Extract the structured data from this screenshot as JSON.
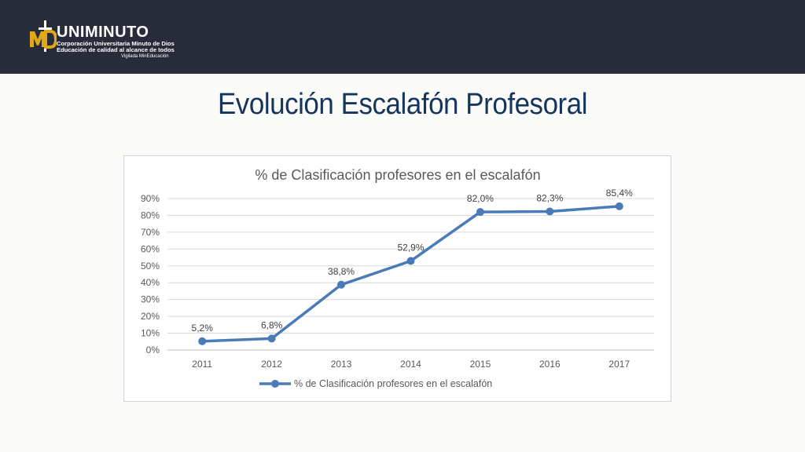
{
  "header": {
    "logo_mark": "MD",
    "logo_name": "UNIMINUTO",
    "logo_line1": "Corporación Universitaria Minuto de Dios",
    "logo_line2": "Educación de calidad al alcance de todos",
    "logo_line3": "Vigilada MinEducación"
  },
  "slide": {
    "title": "Evolución Escalafón Profesoral"
  },
  "colors": {
    "topbar": "#272b3a",
    "title": "#16355c",
    "series": "#4a7ab7",
    "gold": "#e0a819"
  },
  "chart_data": {
    "type": "line",
    "title": "% de Clasificación profesores en el escalafón",
    "xlabel": "",
    "ylabel": "",
    "categories": [
      "2011",
      "2012",
      "2013",
      "2014",
      "2015",
      "2016",
      "2017"
    ],
    "series": [
      {
        "name": "% de Clasificación profesores en el escalafón",
        "values": [
          5.2,
          6.8,
          38.8,
          52.9,
          82.0,
          82.3,
          85.4
        ],
        "labels": [
          "5,2%",
          "6,8%",
          "38,8%",
          "52,9%",
          "82,0%",
          "82,3%",
          "85,4%"
        ],
        "color": "#4a7ab7"
      }
    ],
    "ylim": [
      0,
      90
    ],
    "yticks": [
      0,
      10,
      20,
      30,
      40,
      50,
      60,
      70,
      80,
      90
    ],
    "ytick_labels": [
      "0%",
      "10%",
      "20%",
      "30%",
      "40%",
      "50%",
      "60%",
      "70%",
      "80%",
      "90%"
    ],
    "grid": true,
    "legend_position": "bottom"
  }
}
